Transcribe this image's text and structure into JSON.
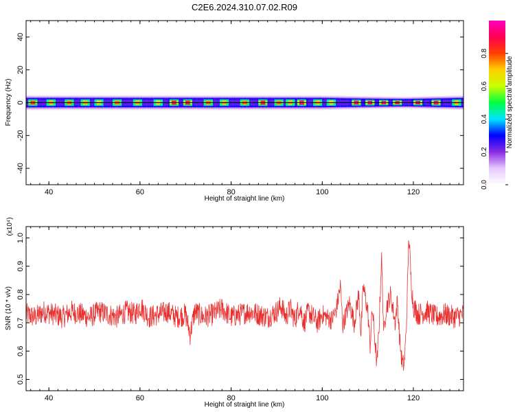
{
  "title": "C2E6.2024.310.07.02.R09",
  "chart_data": [
    {
      "type": "heatmap",
      "xlabel": "Height of straight line (km)",
      "ylabel": "Frequency (Hz)",
      "xlim": [
        35,
        131
      ],
      "ylim": [
        -50,
        50
      ],
      "xticks": [
        40,
        60,
        80,
        100,
        120
      ],
      "yticks": [
        40,
        20,
        0,
        -20,
        -40
      ],
      "colorbar": {
        "label": "Normalized spectral amplitude",
        "range": [
          0,
          1
        ],
        "ticks": [
          0.0,
          0.2,
          0.4,
          0.6,
          0.8
        ],
        "colors": [
          "#ffffff",
          "#e6c8ff",
          "#8a2be2",
          "#0000ff",
          "#00e5ff",
          "#00ff40",
          "#c8ff00",
          "#ffd000",
          "#ff4000",
          "#ff0050",
          "#ff00c0"
        ]
      },
      "band": {
        "center_hz": 0,
        "line_color": "#000000",
        "halfwidth_hz": [
          {
            "x": 35,
            "w": 4.5
          },
          {
            "x": 50,
            "w": 4.5
          },
          {
            "x": 70,
            "w": 4.5
          },
          {
            "x": 100,
            "w": 4.5
          },
          {
            "x": 108,
            "w": 4.0
          },
          {
            "x": 118,
            "w": 3.5
          },
          {
            "x": 131,
            "w": 4.5
          }
        ],
        "peaks": [
          {
            "x": 36.5,
            "amp": 0.9
          },
          {
            "x": 40.5,
            "amp": 0.8
          },
          {
            "x": 44.5,
            "amp": 0.85
          },
          {
            "x": 48,
            "amp": 0.8
          },
          {
            "x": 51,
            "amp": 0.75
          },
          {
            "x": 55,
            "amp": 0.85
          },
          {
            "x": 59.5,
            "amp": 0.8
          },
          {
            "x": 64,
            "amp": 0.75
          },
          {
            "x": 67.5,
            "amp": 0.95
          },
          {
            "x": 70.5,
            "amp": 0.95
          },
          {
            "x": 75,
            "amp": 0.85
          },
          {
            "x": 78.5,
            "amp": 0.8
          },
          {
            "x": 83,
            "amp": 0.85
          },
          {
            "x": 87,
            "amp": 0.95
          },
          {
            "x": 90.5,
            "amp": 0.85
          },
          {
            "x": 93,
            "amp": 0.8
          },
          {
            "x": 95.5,
            "amp": 1.0
          },
          {
            "x": 99,
            "amp": 0.8
          },
          {
            "x": 102,
            "amp": 0.75
          },
          {
            "x": 107.5,
            "amp": 1.0
          },
          {
            "x": 110.5,
            "amp": 1.0
          },
          {
            "x": 113.5,
            "amp": 1.0
          },
          {
            "x": 116.5,
            "amp": 0.95
          },
          {
            "x": 121,
            "amp": 1.0
          },
          {
            "x": 125,
            "amp": 1.0
          },
          {
            "x": 129.5,
            "amp": 0.8
          }
        ]
      }
    },
    {
      "type": "line",
      "xlabel": "Height of straight line (km)",
      "ylabel": "SNR (10 * v/v)",
      "scale_label": "(x10⁴)",
      "xlim": [
        35,
        131
      ],
      "ylim": [
        0.46,
        1.04
      ],
      "xticks": [
        40,
        60,
        80,
        100,
        120
      ],
      "yticks": [
        1.0,
        0.9,
        0.8,
        0.7,
        0.6,
        0.5
      ],
      "line_color": "#e8302f",
      "series": [
        {
          "x": [
            35,
            37,
            39,
            41,
            43,
            45,
            47,
            49,
            51,
            53,
            55,
            57,
            59,
            60,
            62,
            64,
            66,
            68,
            70,
            71,
            72,
            74,
            76,
            78,
            80,
            82,
            84,
            86,
            88,
            90,
            91,
            92,
            93,
            94,
            95,
            96,
            97,
            98,
            99,
            100,
            101,
            102,
            103,
            104,
            104.5,
            105,
            106,
            107,
            108,
            108.5,
            109,
            110,
            110.5,
            111,
            112,
            112.5,
            113,
            113.5,
            114,
            115,
            116,
            116.5,
            117,
            117.5,
            118,
            118.5,
            119,
            119.5,
            120,
            121,
            123,
            125,
            127,
            129,
            131
          ],
          "y": [
            0.73,
            0.72,
            0.74,
            0.73,
            0.72,
            0.74,
            0.73,
            0.72,
            0.74,
            0.73,
            0.72,
            0.74,
            0.73,
            0.76,
            0.72,
            0.73,
            0.74,
            0.72,
            0.73,
            0.66,
            0.74,
            0.72,
            0.73,
            0.75,
            0.72,
            0.73,
            0.74,
            0.73,
            0.72,
            0.74,
            0.76,
            0.72,
            0.75,
            0.71,
            0.76,
            0.7,
            0.74,
            0.72,
            0.7,
            0.73,
            0.72,
            0.71,
            0.74,
            0.83,
            0.69,
            0.72,
            0.77,
            0.7,
            0.8,
            0.66,
            0.83,
            0.74,
            0.62,
            0.75,
            0.55,
            0.7,
            0.94,
            0.66,
            0.75,
            0.8,
            0.7,
            0.78,
            0.64,
            0.56,
            0.55,
            0.7,
            1.01,
            0.85,
            0.76,
            0.73,
            0.74,
            0.72,
            0.73,
            0.72,
            0.73
          ]
        }
      ]
    }
  ]
}
